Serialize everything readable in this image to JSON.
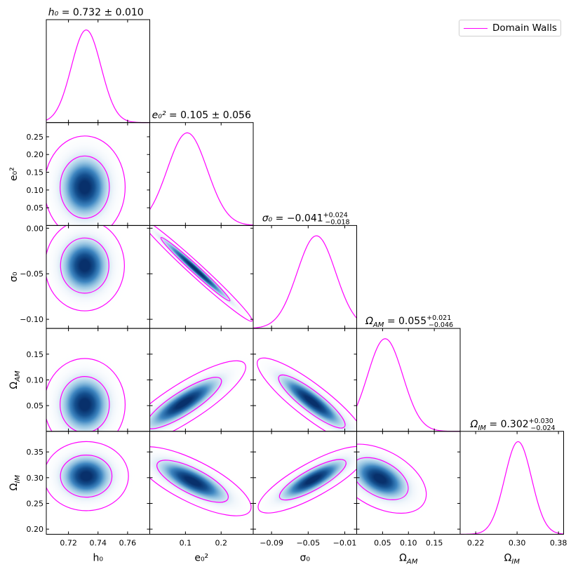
{
  "chart_data": {
    "type": "corner",
    "legend": {
      "label": "Domain Walls",
      "color": "#ff00ff"
    },
    "colors": {
      "curve": "#ff00ff",
      "fill_dark": "#08306b",
      "fill_light": "#f7fbff"
    },
    "parameters": [
      {
        "key": "h0",
        "axis_label": "h₀",
        "title_name": "h₀",
        "title_value": " = 0.732 ± 0.010",
        "title_sup": "",
        "title_sub": "",
        "range": [
          0.705,
          0.775
        ],
        "mean": 0.732,
        "sigma": 0.01,
        "ticks": [
          0.72,
          0.74,
          0.76
        ],
        "tick_labels": [
          "0.72",
          "0.74",
          "0.76"
        ]
      },
      {
        "key": "e02",
        "axis_label": "e₀²",
        "title_name": "e₀²",
        "title_value": " = 0.105 ± 0.056",
        "title_sup": "",
        "title_sub": "",
        "range": [
          0.0,
          0.29
        ],
        "mean": 0.105,
        "sigma": 0.056,
        "ticks": [
          0.1,
          0.2
        ],
        "tick_labels": [
          "0.1",
          "0.2"
        ],
        "y_ticks": [
          0.05,
          0.1,
          0.15,
          0.2,
          0.25
        ],
        "y_tick_labels": [
          "0.05",
          "0.10",
          "0.15",
          "0.20",
          "0.25"
        ]
      },
      {
        "key": "sigma0",
        "axis_label": "σ₀",
        "title_name": "σ₀",
        "title_value": " = −0.041",
        "title_sup": "+0.024",
        "title_sub": "−0.018",
        "range": [
          -0.11,
          0.003
        ],
        "mean": -0.041,
        "sigma": 0.021,
        "ticks": [
          -0.09,
          -0.05,
          -0.01
        ],
        "tick_labels": [
          "−0.09",
          "−0.05",
          "−0.01"
        ],
        "y_ticks": [
          0.0,
          -0.05,
          -0.1
        ],
        "y_tick_labels": [
          "0.00",
          "−0.05",
          "−0.10"
        ]
      },
      {
        "key": "omega_am",
        "axis_label": "Ω_AM",
        "title_name": "Ω_AM",
        "title_value": " = 0.055",
        "title_sup": "+0.021",
        "title_sub": "−0.046",
        "range": [
          0.0,
          0.2
        ],
        "mean": 0.055,
        "sigma": 0.034,
        "ticks": [
          0.05,
          0.1,
          0.15
        ],
        "tick_labels": [
          "0.05",
          "0.10",
          "0.15"
        ],
        "y_ticks": [
          0.05,
          0.1,
          0.15
        ],
        "y_tick_labels": [
          "0.05",
          "0.10",
          "0.15"
        ]
      },
      {
        "key": "omega_im",
        "axis_label": "Ω_IM",
        "title_name": "Ω_IM",
        "title_value": " = 0.302",
        "title_sup": "+0.030",
        "title_sub": "−0.024",
        "range": [
          0.19,
          0.39
        ],
        "mean": 0.302,
        "sigma": 0.026,
        "ticks": [
          0.22,
          0.3,
          0.38
        ],
        "tick_labels": [
          "0.22",
          "0.30",
          "0.38"
        ],
        "y_ticks": [
          0.2,
          0.25,
          0.3,
          0.35
        ],
        "y_tick_labels": [
          "0.20",
          "0.25",
          "0.30",
          "0.35"
        ]
      }
    ],
    "contours": [
      {
        "x": "h0",
        "y": "e02",
        "cx": 0.731,
        "cy": 0.108,
        "sx": 0.011,
        "sy": 0.058,
        "rho": 0.0
      },
      {
        "x": "h0",
        "y": "sigma0",
        "cx": 0.731,
        "cy": -0.041,
        "sx": 0.0108,
        "sy": 0.02,
        "rho": 0.0
      },
      {
        "x": "e02",
        "y": "sigma0",
        "cx": 0.128,
        "cy": -0.045,
        "sx": 0.064,
        "sy": 0.023,
        "rho": -0.985
      },
      {
        "x": "h0",
        "y": "omega_am",
        "cx": 0.731,
        "cy": 0.052,
        "sx": 0.011,
        "sy": 0.036,
        "rho": 0.0
      },
      {
        "x": "e02",
        "y": "omega_am",
        "cx": 0.095,
        "cy": 0.055,
        "sx": 0.07,
        "sy": 0.033,
        "rho": 0.85
      },
      {
        "x": "sigma0",
        "y": "omega_am",
        "cx": -0.046,
        "cy": 0.058,
        "sx": 0.024,
        "sy": 0.034,
        "rho": -0.88
      },
      {
        "x": "h0",
        "y": "omega_im",
        "cx": 0.732,
        "cy": 0.303,
        "sx": 0.0115,
        "sy": 0.027,
        "rho": 0.0
      },
      {
        "x": "e02",
        "y": "omega_im",
        "cx": 0.12,
        "cy": 0.293,
        "sx": 0.066,
        "sy": 0.027,
        "rho": -0.75
      },
      {
        "x": "sigma0",
        "y": "omega_im",
        "cx": -0.045,
        "cy": 0.296,
        "sx": 0.024,
        "sy": 0.026,
        "rho": 0.82
      },
      {
        "x": "omega_am",
        "y": "omega_im",
        "cx": 0.045,
        "cy": 0.298,
        "sx": 0.036,
        "sy": 0.027,
        "rho": -0.45
      }
    ]
  }
}
